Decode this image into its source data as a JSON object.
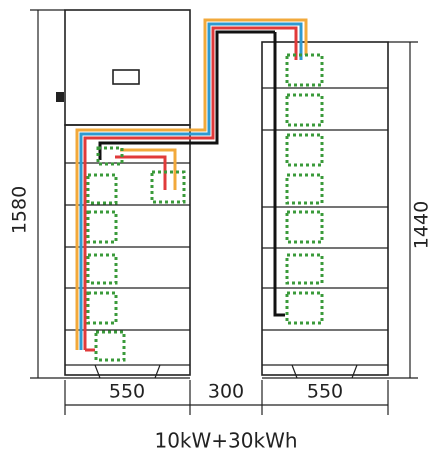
{
  "dimensions": {
    "left_height": "1580",
    "right_height": "1440",
    "left_width": "550",
    "gap": "300",
    "right_width": "550"
  },
  "caption": "10kW+30kWh"
}
